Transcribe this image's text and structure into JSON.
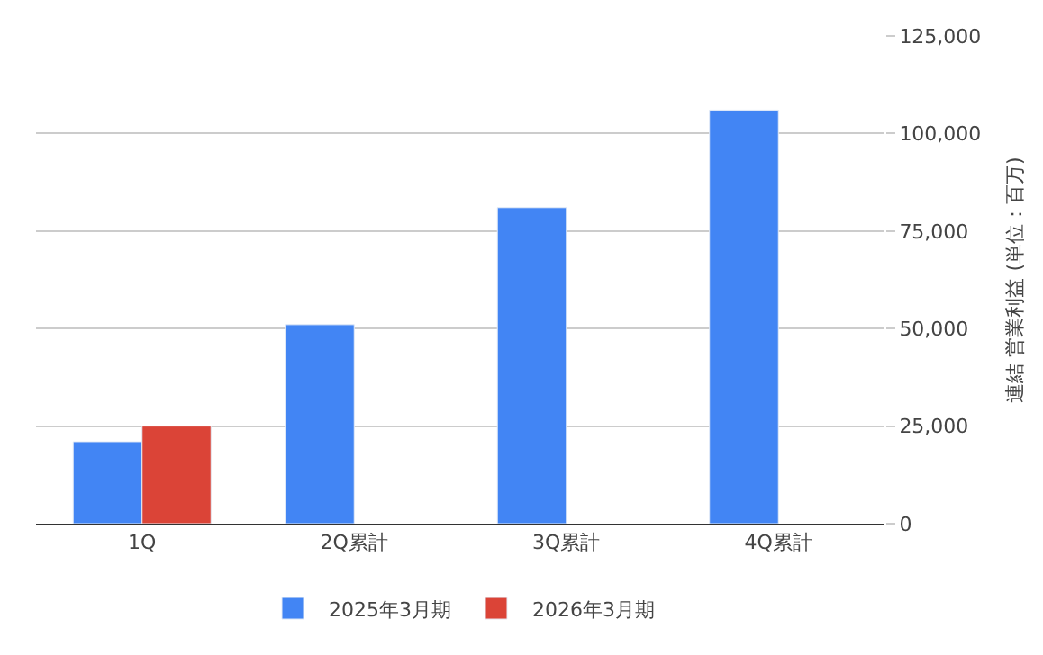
{
  "chart_data": {
    "type": "bar",
    "categories": [
      "1Q",
      "2Q累計",
      "3Q累計",
      "4Q累計"
    ],
    "series": [
      {
        "name": "2025年3月期",
        "color": "#4285f4",
        "values": [
          21000,
          51000,
          81000,
          106000
        ]
      },
      {
        "name": "2026年3月期",
        "color": "#db4437",
        "values": [
          25000,
          null,
          null,
          null
        ]
      }
    ],
    "ylabel": "連結 営業利益 (単位：百万)",
    "ylim": [
      0,
      125000
    ],
    "yticks": [
      {
        "value": 0,
        "label": "0"
      },
      {
        "value": 25000,
        "label": "25,000"
      },
      {
        "value": 50000,
        "label": "50,000"
      },
      {
        "value": 75000,
        "label": "75,000"
      },
      {
        "value": 100000,
        "label": "100,000"
      },
      {
        "value": 125000,
        "label": "125,000"
      }
    ],
    "grid": "y",
    "legend": "bottom"
  }
}
